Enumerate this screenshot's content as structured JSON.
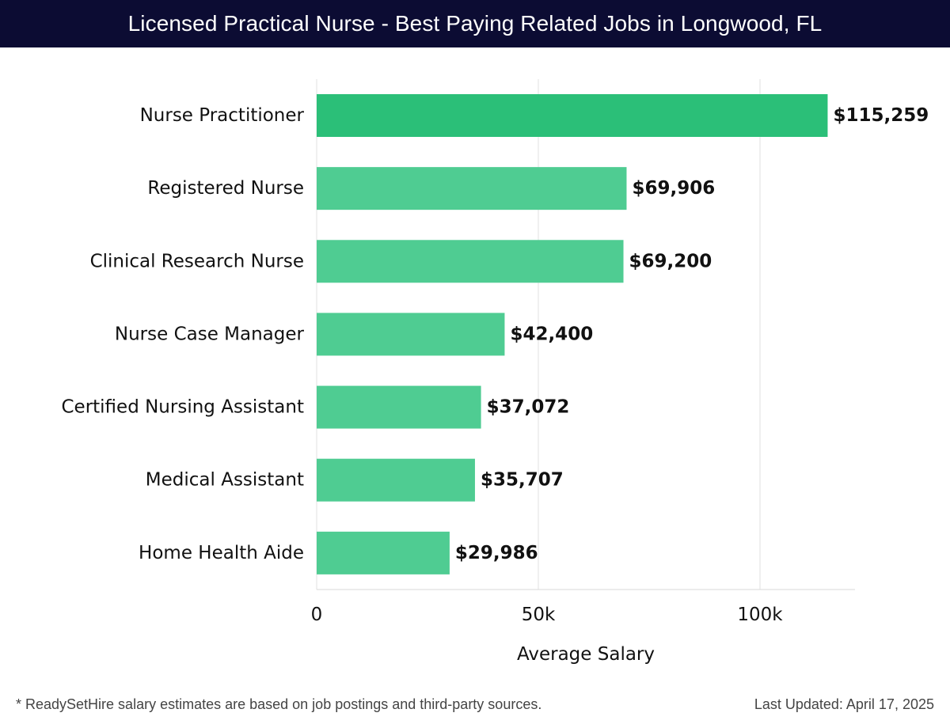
{
  "header": {
    "title": "Licensed Practical Nurse - Best Paying Related Jobs in Longwood, FL"
  },
  "footer": {
    "note": "* ReadySetHire salary estimates are based on job postings and third-party sources.",
    "last_updated": "Last Updated: April 17, 2025"
  },
  "colors": {
    "title_bar": "#0c0c33",
    "top_bar": "#2bbf78",
    "other_bars": "#4fcc92",
    "grid": "#e2e2e2"
  },
  "chart_data": {
    "type": "bar",
    "orientation": "horizontal",
    "title": "Licensed Practical Nurse - Best Paying Related Jobs in Longwood, FL",
    "xlabel": "Average Salary",
    "ylabel": "",
    "xlim": [
      0,
      121428
    ],
    "x_ticks": [
      0,
      50000,
      100000
    ],
    "x_tick_labels": [
      "0",
      "50k",
      "100k"
    ],
    "grid": "vertical",
    "categories": [
      "Nurse Practitioner",
      "Registered Nurse",
      "Clinical Research Nurse",
      "Nurse Case Manager",
      "Certified Nursing Assistant",
      "Medical Assistant",
      "Home Health Aide"
    ],
    "values": [
      115259,
      69906,
      69200,
      42400,
      37072,
      35707,
      29986
    ],
    "value_labels": [
      "$115,259",
      "$69,906",
      "$69,200",
      "$42,400",
      "$37,072",
      "$35,707",
      "$29,986"
    ]
  }
}
